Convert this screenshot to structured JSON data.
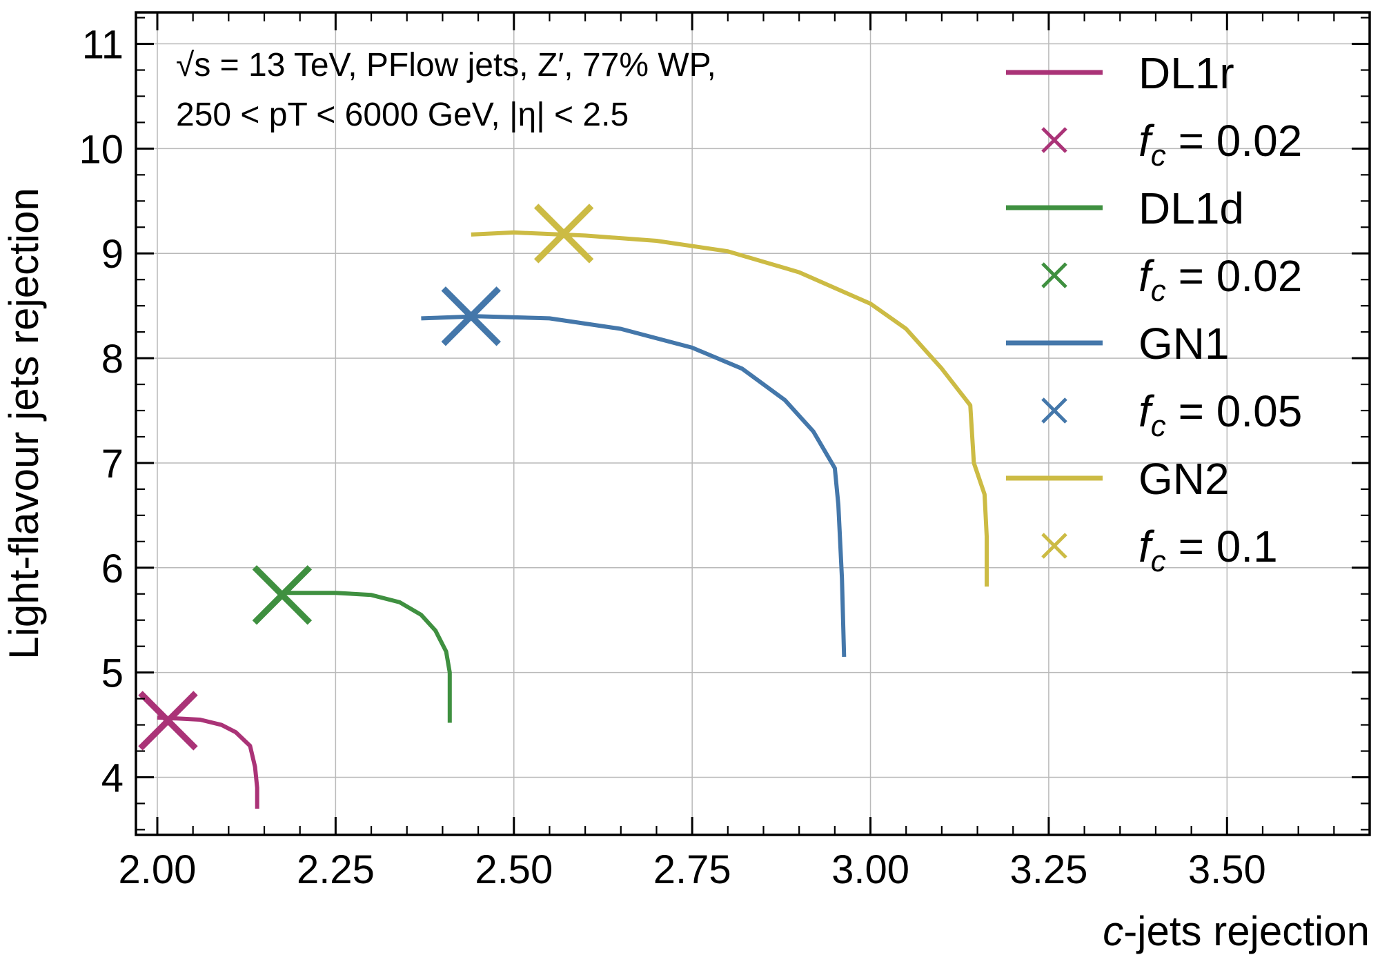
{
  "chart_data": {
    "type": "line",
    "xlabel": "c-jets rejection",
    "xlabel_parts": {
      "italic": "c",
      "rest": "-jets rejection"
    },
    "ylabel": "Light-flavour jets rejection",
    "xlim": [
      1.97,
      3.7
    ],
    "ylim": [
      3.45,
      11.3
    ],
    "xticks": [
      2.0,
      2.25,
      2.5,
      2.75,
      3.0,
      3.25,
      3.5
    ],
    "xtick_labels": [
      "2.00",
      "2.25",
      "2.50",
      "2.75",
      "3.00",
      "3.25",
      "3.50"
    ],
    "yticks": [
      4,
      5,
      6,
      7,
      8,
      9,
      10,
      11
    ],
    "ytick_labels": [
      "4",
      "5",
      "6",
      "7",
      "8",
      "9",
      "10",
      "11"
    ],
    "grid": true,
    "legend_position": "top-right",
    "annotation": {
      "line1": "√s = 13 TeV, PFlow jets, Z′, 77% WP,",
      "line2": "250 < pT < 6000 GeV, |η| < 2.5"
    },
    "series": [
      {
        "name": "DL1r",
        "color": "#aa3377",
        "points": [
          [
            2.0,
            4.57
          ],
          [
            2.03,
            4.56
          ],
          [
            2.06,
            4.55
          ],
          [
            2.09,
            4.5
          ],
          [
            2.11,
            4.43
          ],
          [
            2.13,
            4.3
          ],
          [
            2.137,
            4.1
          ],
          [
            2.14,
            3.9
          ],
          [
            2.14,
            3.7
          ]
        ],
        "marker": {
          "label": "f_c = 0.02",
          "label_parts": {
            "sym": "f",
            "sub": "c",
            "value": " = 0.02"
          },
          "x": 2.015,
          "y": 4.54
        }
      },
      {
        "name": "DL1d",
        "color": "#3f9040",
        "points": [
          [
            2.18,
            5.76
          ],
          [
            2.25,
            5.76
          ],
          [
            2.3,
            5.74
          ],
          [
            2.34,
            5.67
          ],
          [
            2.37,
            5.55
          ],
          [
            2.39,
            5.4
          ],
          [
            2.405,
            5.2
          ],
          [
            2.41,
            5.0
          ],
          [
            2.41,
            4.7
          ],
          [
            2.41,
            4.52
          ]
        ],
        "marker": {
          "label": "f_c = 0.02",
          "label_parts": {
            "sym": "f",
            "sub": "c",
            "value": " = 0.02"
          },
          "x": 2.175,
          "y": 5.74
        }
      },
      {
        "name": "GN1",
        "color": "#4477aa",
        "points": [
          [
            2.37,
            8.38
          ],
          [
            2.45,
            8.4
          ],
          [
            2.55,
            8.38
          ],
          [
            2.65,
            8.28
          ],
          [
            2.75,
            8.1
          ],
          [
            2.82,
            7.9
          ],
          [
            2.88,
            7.6
          ],
          [
            2.92,
            7.3
          ],
          [
            2.95,
            6.95
          ],
          [
            2.955,
            6.6
          ],
          [
            2.96,
            5.9
          ],
          [
            2.963,
            5.15
          ]
        ],
        "marker": {
          "label": "f_c = 0.05",
          "label_parts": {
            "sym": "f",
            "sub": "c",
            "value": " = 0.05"
          },
          "x": 2.44,
          "y": 8.4
        }
      },
      {
        "name": "GN2",
        "color": "#ccbb44",
        "points": [
          [
            2.44,
            9.18
          ],
          [
            2.5,
            9.2
          ],
          [
            2.6,
            9.17
          ],
          [
            2.7,
            9.12
          ],
          [
            2.8,
            9.02
          ],
          [
            2.9,
            8.82
          ],
          [
            3.0,
            8.52
          ],
          [
            3.05,
            8.28
          ],
          [
            3.1,
            7.9
          ],
          [
            3.14,
            7.55
          ],
          [
            3.145,
            7.0
          ],
          [
            3.16,
            6.7
          ],
          [
            3.163,
            6.3
          ],
          [
            3.163,
            5.82
          ]
        ],
        "marker": {
          "label": "f_c = 0.1",
          "label_parts": {
            "sym": "f",
            "sub": "c",
            "value": " = 0.1"
          },
          "x": 2.57,
          "y": 9.19
        }
      }
    ]
  }
}
